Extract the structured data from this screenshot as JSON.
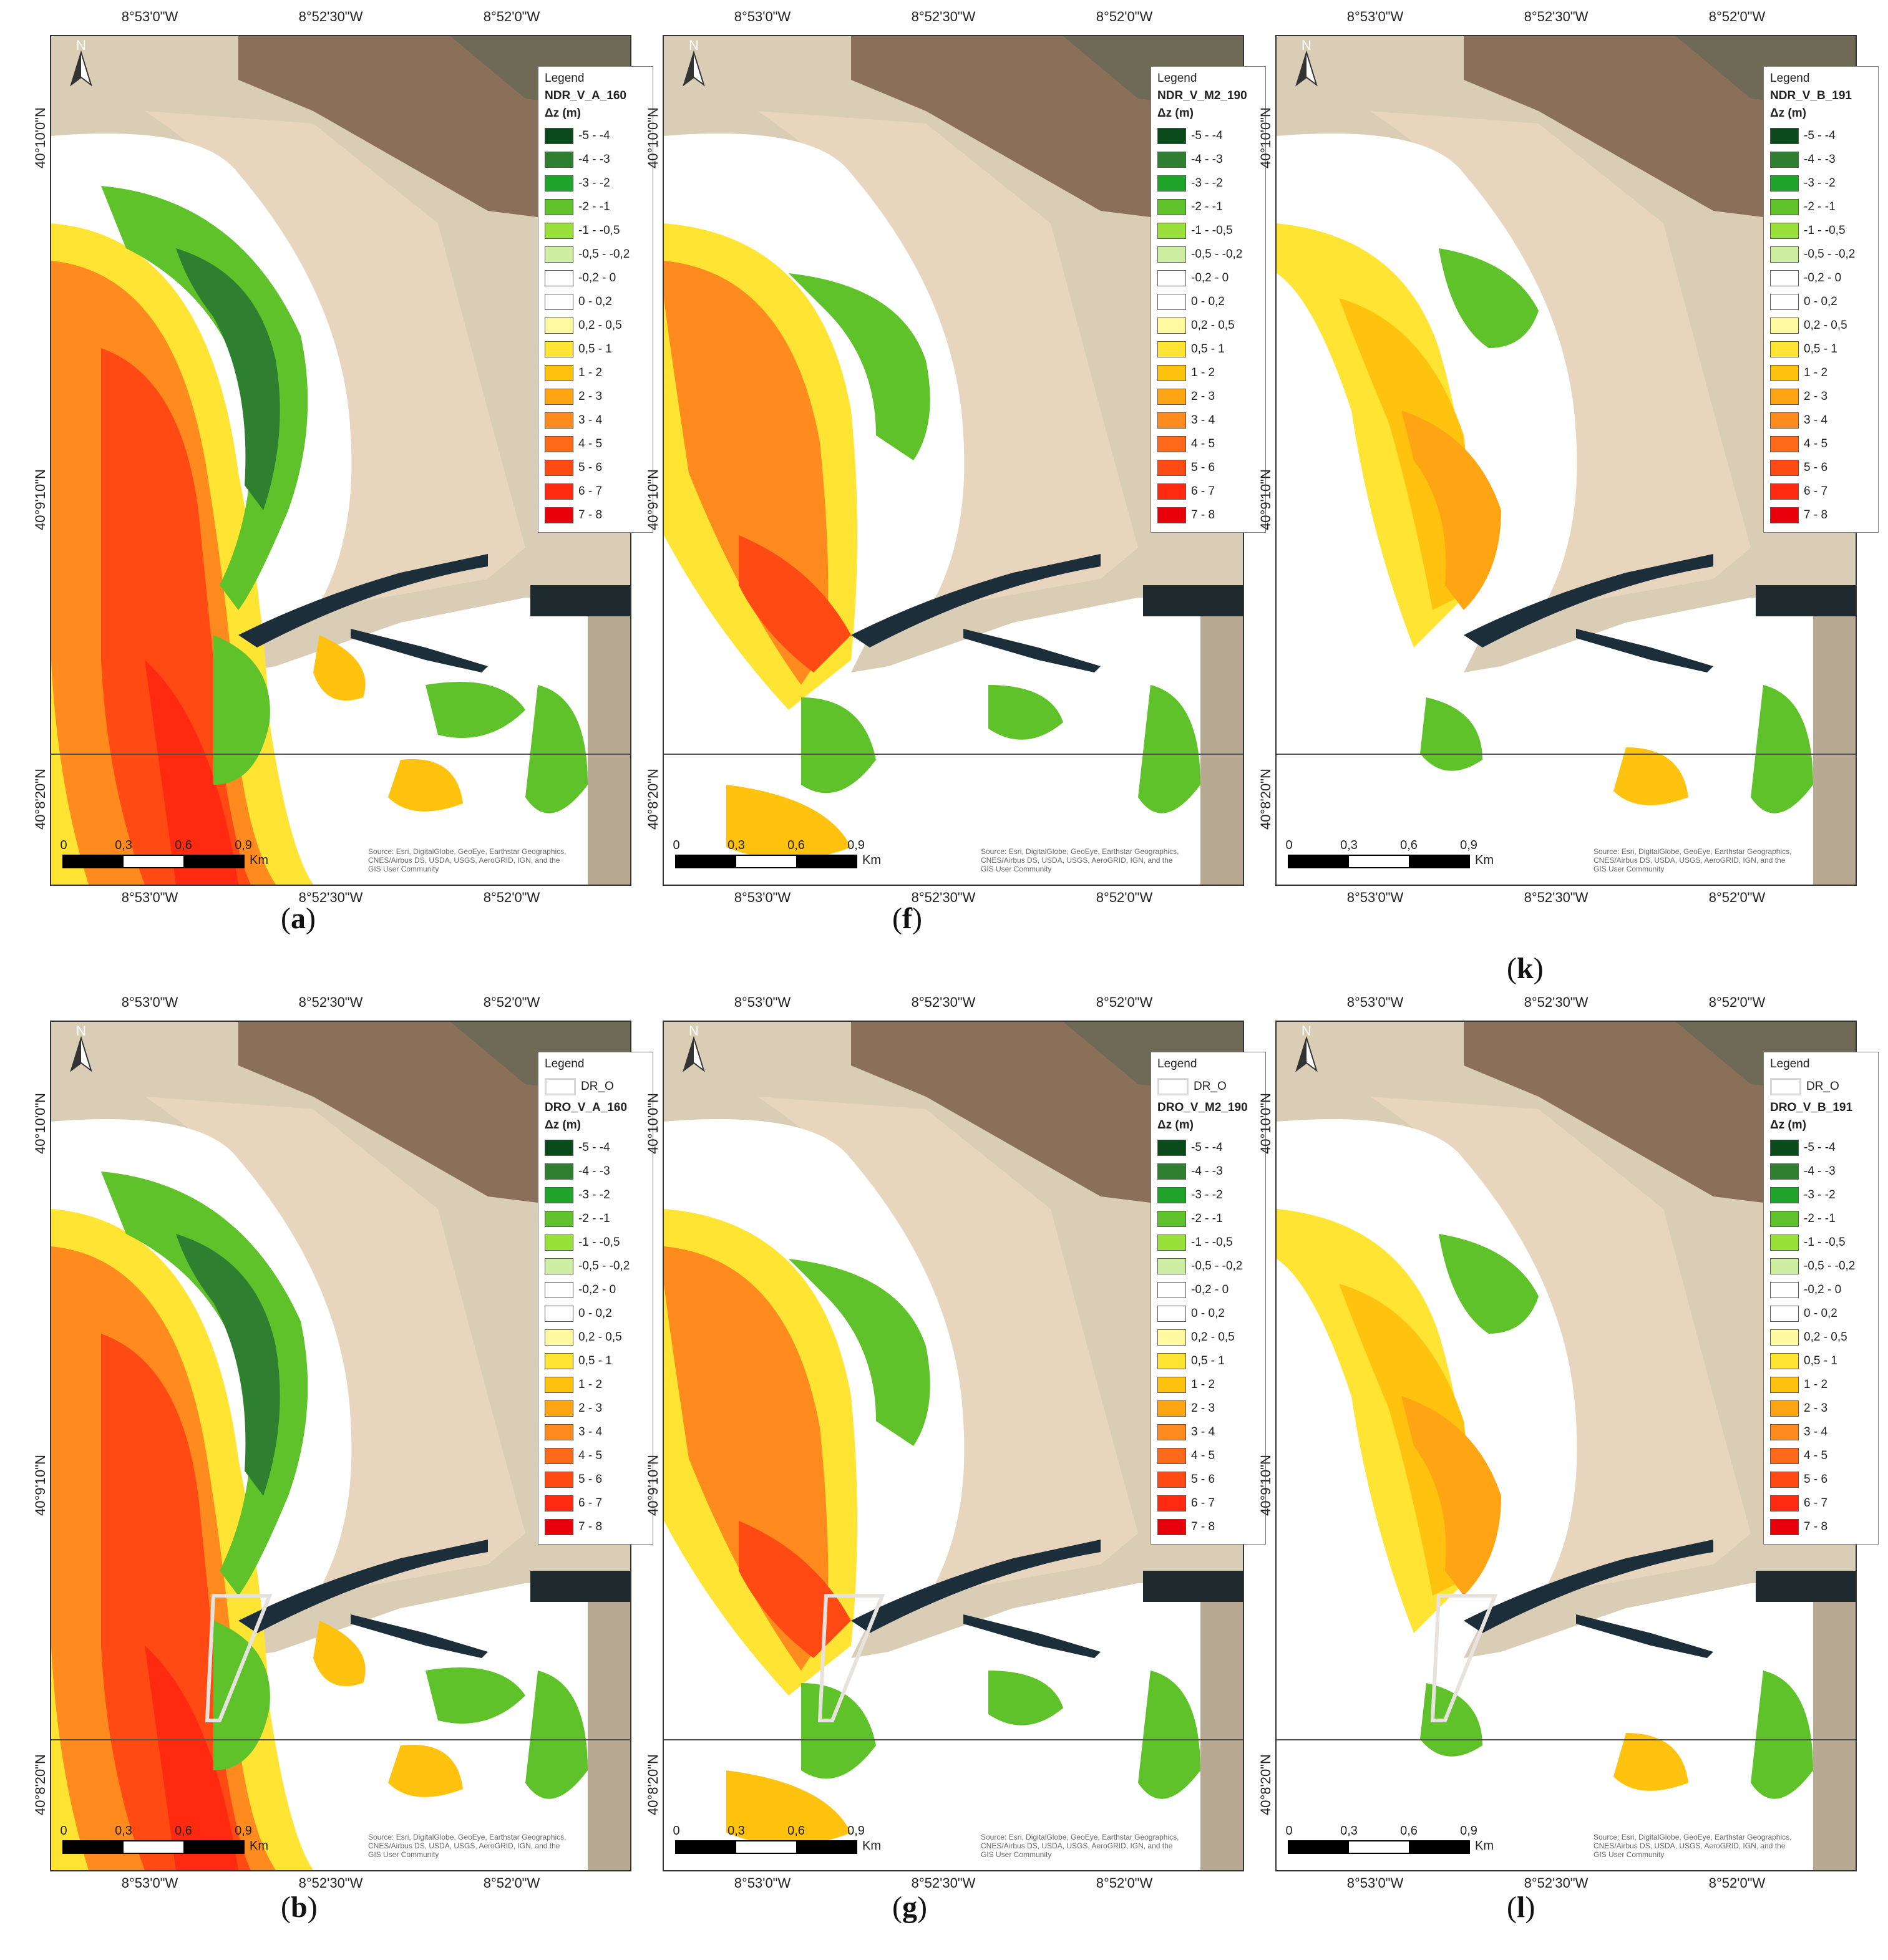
{
  "panels": [
    {
      "id": "a",
      "label": "a",
      "series": "NDR_V_A_160",
      "has_polygon": false,
      "profile": "A"
    },
    {
      "id": "f",
      "label": "f",
      "series": "NDR_V_M2_190",
      "has_polygon": false,
      "profile": "M"
    },
    {
      "id": "k",
      "label": "k",
      "series": "NDR_V_B_191",
      "has_polygon": false,
      "profile": "B"
    },
    {
      "id": "b",
      "label": "b",
      "series": "DRO_V_A_160",
      "has_polygon": true,
      "profile": "A"
    },
    {
      "id": "g",
      "label": "g",
      "series": "DRO_V_M2_190",
      "has_polygon": true,
      "profile": "M"
    },
    {
      "id": "l",
      "label": "l",
      "series": "DRO_V_B_191",
      "has_polygon": true,
      "profile": "B"
    }
  ],
  "legend": {
    "title": "Legend",
    "unit": "Δz (m)",
    "polygon_label": "DR_O",
    "classes": [
      {
        "label": "-5 - -4",
        "color": "#0b4a1a"
      },
      {
        "label": "-4 - -3",
        "color": "#2f7f31"
      },
      {
        "label": "-3 - -2",
        "color": "#1fa32a"
      },
      {
        "label": "-2 - -1",
        "color": "#5fc22a"
      },
      {
        "label": "-1 - -0,5",
        "color": "#9ae03a"
      },
      {
        "label": "-0,5 - -0,2",
        "color": "#cdeea0"
      },
      {
        "label": "-0,2 - 0",
        "color": "#ffffff"
      },
      {
        "label": "0 - 0,2",
        "color": "#ffffff"
      },
      {
        "label": "0,2 - 0,5",
        "color": "#fffaa0"
      },
      {
        "label": "0,5 - 1",
        "color": "#ffe433"
      },
      {
        "label": "1 - 2",
        "color": "#ffc20e"
      },
      {
        "label": "2 - 3",
        "color": "#ffa514"
      },
      {
        "label": "3 - 4",
        "color": "#ff8a1e"
      },
      {
        "label": "4 - 5",
        "color": "#ff6a1a"
      },
      {
        "label": "5 - 6",
        "color": "#ff4a14"
      },
      {
        "label": "6 - 7",
        "color": "#ff2a10"
      },
      {
        "label": "7 - 8",
        "color": "#e8000a"
      }
    ]
  },
  "axes": {
    "lon_ticks": [
      "8°53'0\"W",
      "8°52'30\"W",
      "8°52'0\"W"
    ],
    "lat_ticks": [
      "40°10'0\"N",
      "40°9'10\"N",
      "40°8'20\"N"
    ]
  },
  "scalebar": {
    "ticks": [
      "0",
      "0,3",
      "0,6",
      "0,9"
    ],
    "unit": "Km"
  },
  "north_label": "N",
  "credits": "Source: Esri, DigitalGlobe, GeoEye, Earthstar Geographics, CNES/Airbus DS, USDA, USGS, AeroGRID, IGN, and the GIS User Community"
}
